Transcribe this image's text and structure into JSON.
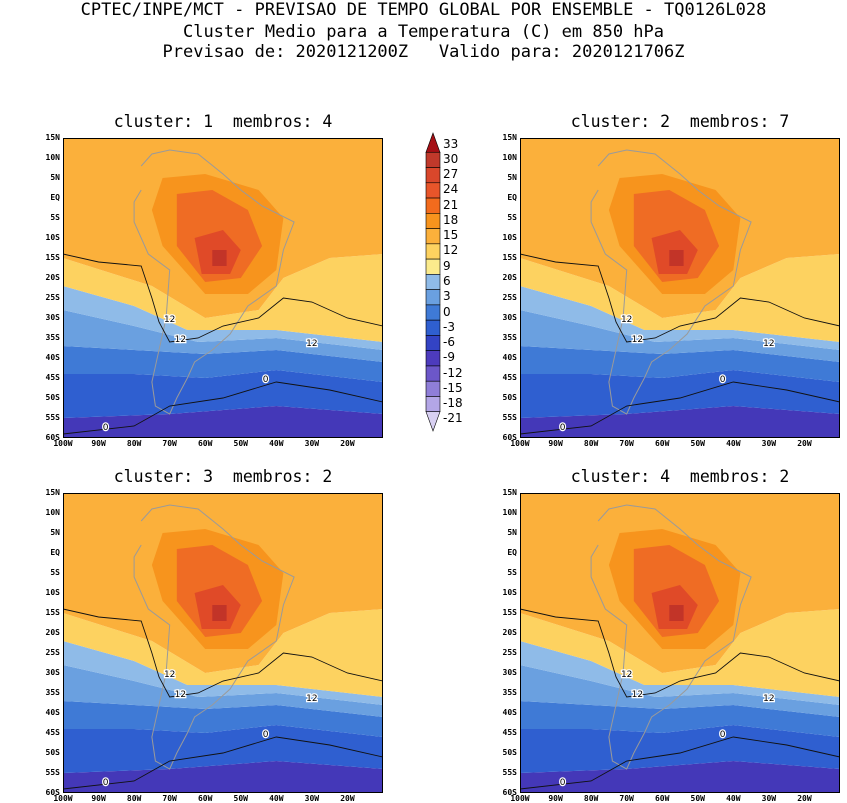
{
  "header": {
    "line1": "CPTEC/INPE/MCT - PREVISAO DE TEMPO GLOBAL POR ENSEMBLE - TQ0126L028",
    "line2": "Cluster Medio para a Temperatura (C) em 850 hPa",
    "line3": "Previsao de: 2020121200Z   Valido para: 2020121706Z"
  },
  "panels": [
    {
      "title": "cluster: 1  membros: 4"
    },
    {
      "title": "cluster: 2  membros: 7"
    },
    {
      "title": "cluster: 3  membros: 2"
    },
    {
      "title": "cluster: 4  membros: 2"
    }
  ],
  "lat_ticks": [
    "15N",
    "10N",
    "5N",
    "EQ",
    "5S",
    "10S",
    "15S",
    "20S",
    "25S",
    "30S",
    "35S",
    "40S",
    "45S",
    "50S",
    "55S",
    "60S"
  ],
  "lon_ticks": [
    "100W",
    "90W",
    "80W",
    "70W",
    "60W",
    "50W",
    "40W",
    "30W",
    "20W"
  ],
  "contour_labels": [
    "12",
    "12",
    "12",
    "0",
    "0"
  ],
  "colorbar": {
    "levels": [
      "33",
      "30",
      "27",
      "24",
      "21",
      "18",
      "15",
      "12",
      "9",
      "6",
      "3",
      "0",
      "-3",
      "-6",
      "-9",
      "-12",
      "-15",
      "-18",
      "-21"
    ],
    "colors": [
      "#a50f15",
      "#c0392b",
      "#d9472b",
      "#e8552a",
      "#f26b1d",
      "#f7941d",
      "#fbb03b",
      "#fdd260",
      "#fbeb8c",
      "#8fbbe8",
      "#6aa0e0",
      "#3f7ad6",
      "#2f5fd0",
      "#3343c4",
      "#4d3bbd",
      "#6c57c9",
      "#8f7ed8",
      "#b3a6e6",
      "#d8d0f2"
    ]
  }
}
